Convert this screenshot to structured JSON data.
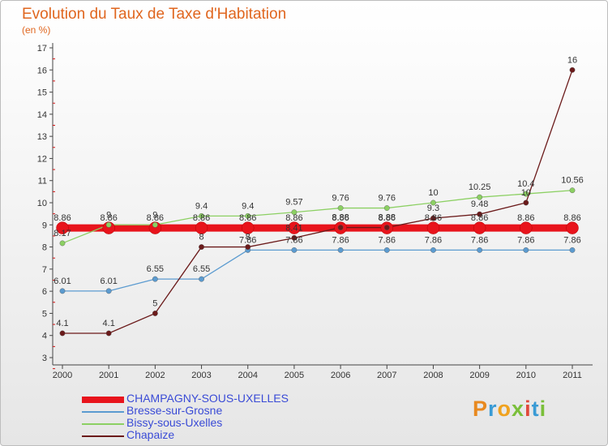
{
  "title": "Evolution du Taux de Taxe d'Habitation",
  "unit": "(en %)",
  "logo": {
    "text": "Proxiti",
    "colors": [
      "#e8891f",
      "#3a9bd5",
      "#f0a21e",
      "#7abf3a",
      "#e0493c",
      "#3a9bd5",
      "#7abf3a"
    ]
  },
  "chart_data": {
    "type": "line",
    "title": "Evolution du Taux de Taxe d'Habitation",
    "ylabel": "(en %)",
    "xlabel": "",
    "x": [
      "2000",
      "2001",
      "2002",
      "2003",
      "2004",
      "2005",
      "2006",
      "2007",
      "2008",
      "2009",
      "2010",
      "2011"
    ],
    "ylim": [
      3,
      17
    ],
    "yticks": [
      3,
      4,
      5,
      6,
      7,
      8,
      9,
      10,
      11,
      12,
      13,
      14,
      15,
      16,
      17
    ],
    "grid": false,
    "legend": "bottom-left",
    "series": [
      {
        "name": "CHAMPAGNY-SOUS-UXELLES",
        "color": "#e8141c",
        "values": [
          8.86,
          8.86,
          8.86,
          8.86,
          8.86,
          8.86,
          8.86,
          8.86,
          8.86,
          8.86,
          8.86,
          8.86
        ],
        "labels": [
          "8.86",
          "8.86",
          "8.86",
          "8.86",
          "8.86",
          "8.86",
          "8.86",
          "8.86",
          "8.86",
          "8.86",
          "8.86",
          "8.86"
        ]
      },
      {
        "name": "Bresse-sur-Grosne",
        "color": "#5b9bd0",
        "values": [
          6.01,
          6.01,
          6.55,
          6.55,
          7.86,
          7.86,
          7.86,
          7.86,
          7.86,
          7.86,
          7.86,
          7.86
        ],
        "labels": [
          "6.01",
          "6.01",
          "6.55",
          "6.55",
          "7.86",
          "7.86",
          "7.86",
          "7.86",
          "7.86",
          "7.86",
          "7.86",
          "7.86"
        ]
      },
      {
        "name": "Bissy-sous-Uxelles",
        "color": "#8cd063",
        "values": [
          8.17,
          9,
          9,
          9.4,
          9.4,
          9.57,
          9.76,
          9.76,
          10,
          10.25,
          10.4,
          10.56
        ],
        "labels": [
          "8.17",
          "9",
          "9",
          "9.4",
          "9.4",
          "9.57",
          "9.76",
          "9.76",
          "10",
          "10.25",
          "10.4",
          "10.56"
        ]
      },
      {
        "name": "Chapaize",
        "color": "#6b1a1a",
        "values": [
          4.1,
          4.1,
          5,
          8,
          8,
          8.41,
          8.88,
          8.88,
          9.3,
          9.48,
          10,
          16
        ],
        "labels": [
          "4.1",
          "4.1",
          "5",
          "8",
          "8",
          "8.41",
          "8.88",
          "8.88",
          "9.3",
          "9.48",
          "10",
          "16"
        ]
      }
    ]
  }
}
